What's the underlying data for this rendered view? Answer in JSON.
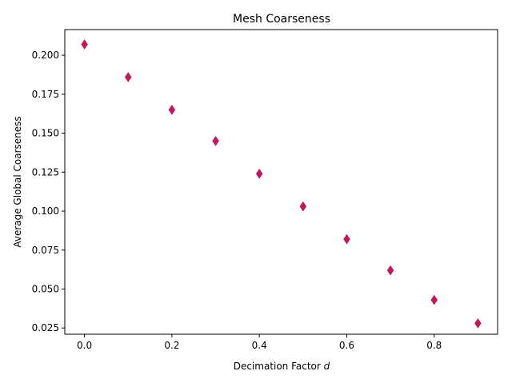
{
  "chart_data": {
    "type": "scatter",
    "title": "Mesh Coarseness",
    "xlabel": "Decimation Factor",
    "xlabel_variable": "d",
    "ylabel": "Average Global Coarseness",
    "xlim": [
      -0.045,
      0.945
    ],
    "ylim": [
      0.021,
      0.2165
    ],
    "x_ticks": [
      0.0,
      0.2,
      0.4,
      0.6,
      0.8
    ],
    "x_tick_labels": [
      "0.0",
      "0.2",
      "0.4",
      "0.6",
      "0.8"
    ],
    "y_ticks": [
      0.025,
      0.05,
      0.075,
      0.1,
      0.125,
      0.15,
      0.175,
      0.2
    ],
    "y_tick_labels": [
      "0.025",
      "0.050",
      "0.075",
      "0.100",
      "0.125",
      "0.150",
      "0.175",
      "0.200"
    ],
    "grid": false,
    "marker": "diamond",
    "marker_color": "#c2185b",
    "series": [
      {
        "x": [
          0.0,
          0.1,
          0.2,
          0.3,
          0.4,
          0.5,
          0.6,
          0.7,
          0.8,
          0.9
        ],
        "y": [
          0.207,
          0.186,
          0.165,
          0.145,
          0.124,
          0.103,
          0.082,
          0.062,
          0.043,
          0.028
        ]
      }
    ]
  }
}
